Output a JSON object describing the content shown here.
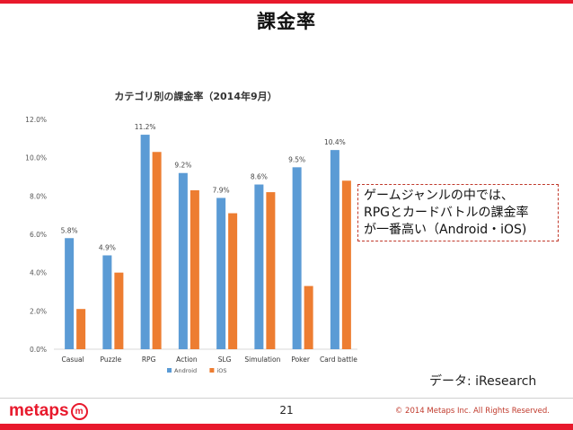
{
  "slide": {
    "title": "課金率",
    "callout": [
      "ゲームジャンルの中では、",
      "RPGとカードバトルの課金率",
      "が一番高い（Android・iOS)"
    ],
    "source": "データ: iResearch",
    "page_number": "21",
    "copyright": "© 2014 Metaps Inc. All Rights Reserved.",
    "logo_text": "metaps",
    "logo_mark": "m",
    "accent_color": "#e8192c"
  },
  "chart_data": {
    "type": "bar",
    "title": "カテゴリ別の課金率（2014年9月）",
    "categories": [
      "Casual",
      "Puzzle",
      "RPG",
      "Action",
      "SLG",
      "Simulation",
      "Poker",
      "Card battle"
    ],
    "series": [
      {
        "name": "Android",
        "color": "#5b9bd5",
        "values": [
          5.8,
          4.9,
          11.2,
          9.2,
          7.9,
          8.6,
          9.5,
          10.4
        ],
        "labels": [
          "5.8%",
          "4.9%",
          "11.2%",
          "9.2%",
          "7.9%",
          "8.6%",
          "9.5%",
          "10.4%"
        ]
      },
      {
        "name": "iOS",
        "color": "#ed7d31",
        "values": [
          2.1,
          4.0,
          10.3,
          8.3,
          7.1,
          8.2,
          3.3,
          8.8
        ]
      }
    ],
    "ylim": [
      0,
      12
    ],
    "yticks": [
      0,
      2,
      4,
      6,
      8,
      10,
      12
    ],
    "ytick_labels": [
      "0.0%",
      "2.0%",
      "4.0%",
      "6.0%",
      "8.0%",
      "10.0%",
      "12.0%"
    ],
    "xlabel": "",
    "ylabel": "",
    "grid": false,
    "legend_position": "bottom"
  }
}
